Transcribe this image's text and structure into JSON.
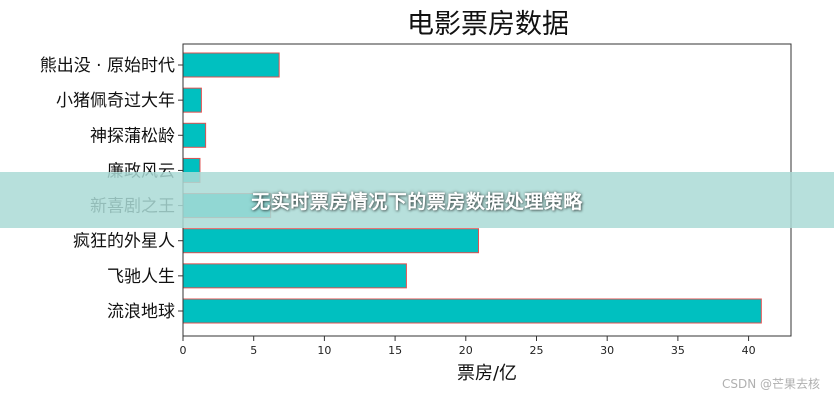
{
  "chart_data": {
    "type": "bar",
    "orientation": "horizontal",
    "title": "电影票房数据",
    "xlabel": "票房/亿",
    "ylabel": "",
    "categories": [
      "熊出没·原始时代",
      "小猪佩奇过大年",
      "神探蒲松龄",
      "廉政风云",
      "新喜剧之王",
      "疯狂的外星人",
      "飞驰人生",
      "流浪地球"
    ],
    "category_labels": [
      "熊出没 · 原始时代",
      "小猪佩奇过大年",
      "神探蒲松龄",
      "廉政风云",
      "新喜剧之王",
      "疯狂的外星人",
      "飞驰人生",
      "流浪地球"
    ],
    "values": [
      6.8,
      1.3,
      1.6,
      1.2,
      6.2,
      20.9,
      15.8,
      40.9
    ],
    "xlim": [
      0,
      43
    ],
    "xticks": [
      0,
      5,
      10,
      15,
      20,
      25,
      30,
      35,
      40
    ],
    "grid": false,
    "legend": "none",
    "bar_color": "#00c0c0",
    "bar_edge_color": "#e05050"
  },
  "banner": {
    "text": "无实时票房情况下的票房数据处理策略"
  },
  "watermark": "CSDN @芒果去核"
}
